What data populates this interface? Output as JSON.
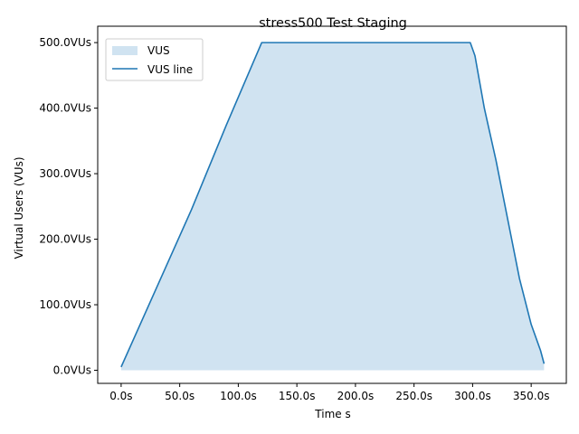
{
  "chart_data": {
    "type": "area",
    "title": "stress500 Test Staging",
    "xlabel": "Time s",
    "ylabel": "Virtual Users (VUs)",
    "xlim": [
      -20,
      380
    ],
    "ylim": [
      -20,
      525
    ],
    "x_ticks": [
      0,
      50,
      100,
      150,
      200,
      250,
      300,
      350
    ],
    "x_tick_labels": [
      "0.0s",
      "50.0s",
      "100.0s",
      "150.0s",
      "200.0s",
      "250.0s",
      "300.0s",
      "350.0s"
    ],
    "y_ticks": [
      0,
      100,
      200,
      300,
      400,
      500
    ],
    "y_tick_labels": [
      "0.0VUs",
      "100.0VUs",
      "200.0VUs",
      "300.0VUs",
      "400.0VUs",
      "500.0VUs"
    ],
    "grid": false,
    "legend_position": "top-left",
    "series": [
      {
        "name": "VUS",
        "kind": "area",
        "color": "#d0e3f1",
        "x": [
          0,
          30,
          60,
          90,
          120,
          150,
          200,
          250,
          298,
          302,
          310,
          320,
          330,
          340,
          350,
          358,
          361
        ],
        "values": [
          5,
          125,
          245,
          375,
          500,
          500,
          500,
          500,
          500,
          480,
          400,
          320,
          230,
          140,
          70,
          30,
          10
        ]
      },
      {
        "name": "VUS line",
        "kind": "line",
        "color": "#1f77b4",
        "x": [
          0,
          30,
          60,
          90,
          120,
          150,
          200,
          250,
          298,
          302,
          310,
          320,
          330,
          340,
          350,
          358,
          361
        ],
        "values": [
          5,
          125,
          245,
          375,
          500,
          500,
          500,
          500,
          500,
          480,
          400,
          320,
          230,
          140,
          70,
          30,
          10
        ]
      }
    ]
  }
}
